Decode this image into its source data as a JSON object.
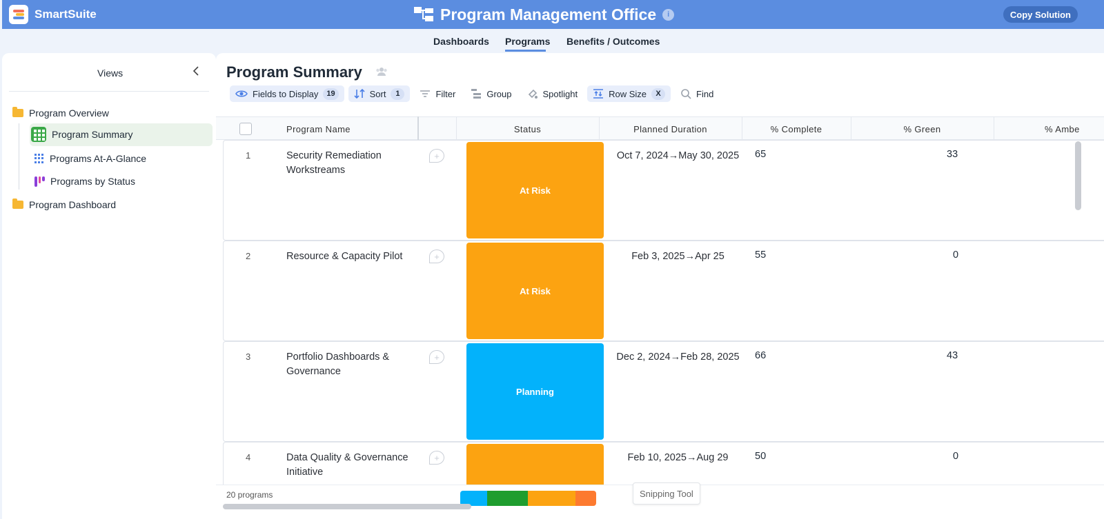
{
  "topbar": {
    "brand": "SmartSuite",
    "title": "Program Management Office",
    "info": "i",
    "copy_button": "Copy Solution"
  },
  "tabs": [
    {
      "label": "Dashboards"
    },
    {
      "label": "Programs",
      "active": true
    },
    {
      "label": "Benefits / Outcomes"
    }
  ],
  "sidebar": {
    "header": "Views",
    "group1": "Program Overview",
    "items": [
      {
        "label": "Program Summary",
        "icon": "grid-icon",
        "active": true
      },
      {
        "label": "Programs At-A-Glance",
        "icon": "glance-icon"
      },
      {
        "label": "Programs by Status",
        "icon": "kanban-icon"
      }
    ],
    "group2": "Program Dashboard"
  },
  "main": {
    "title": "Program Summary",
    "toolbar": {
      "fields": "Fields to Display",
      "fields_count": "19",
      "sort": "Sort",
      "sort_count": "1",
      "filter": "Filter",
      "group": "Group",
      "spotlight": "Spotlight",
      "row_size": "Row Size",
      "row_size_badge": "X",
      "find": "Find"
    },
    "columns": [
      "Program Name",
      "Status",
      "Planned Duration",
      "% Complete",
      "% Green",
      "% Ambe"
    ],
    "rows": [
      {
        "num": "1",
        "name": "Security Remediation Workstreams",
        "status": "At Risk",
        "status_color": "#fca311",
        "duration": "Oct 7, 2024→May 30, 2025",
        "complete": "65",
        "green": "33"
      },
      {
        "num": "2",
        "name": "Resource & Capacity Pilot",
        "status": "At Risk",
        "status_color": "#fca311",
        "duration": "Feb 3, 2025→Apr 25",
        "complete": "55",
        "green": "0"
      },
      {
        "num": "3",
        "name": "Portfolio Dashboards & Governance",
        "status": "Planning",
        "status_color": "#03b2fb",
        "duration": "Dec 2, 2024→Feb 28, 2025",
        "complete": "66",
        "green": "43"
      },
      {
        "num": "4",
        "name": "Data Quality & Governance Initiative",
        "status": "",
        "status_color": "#fca311",
        "duration": "Feb 10, 2025→Aug 29",
        "complete": "50",
        "green": "0"
      }
    ],
    "footer": {
      "count": "20 programs",
      "status_bar_colors": [
        "#03b2fb",
        "#1f9d2e",
        "#fca311",
        "#fd7a2f"
      ]
    }
  },
  "tooltip": "Snipping Tool"
}
